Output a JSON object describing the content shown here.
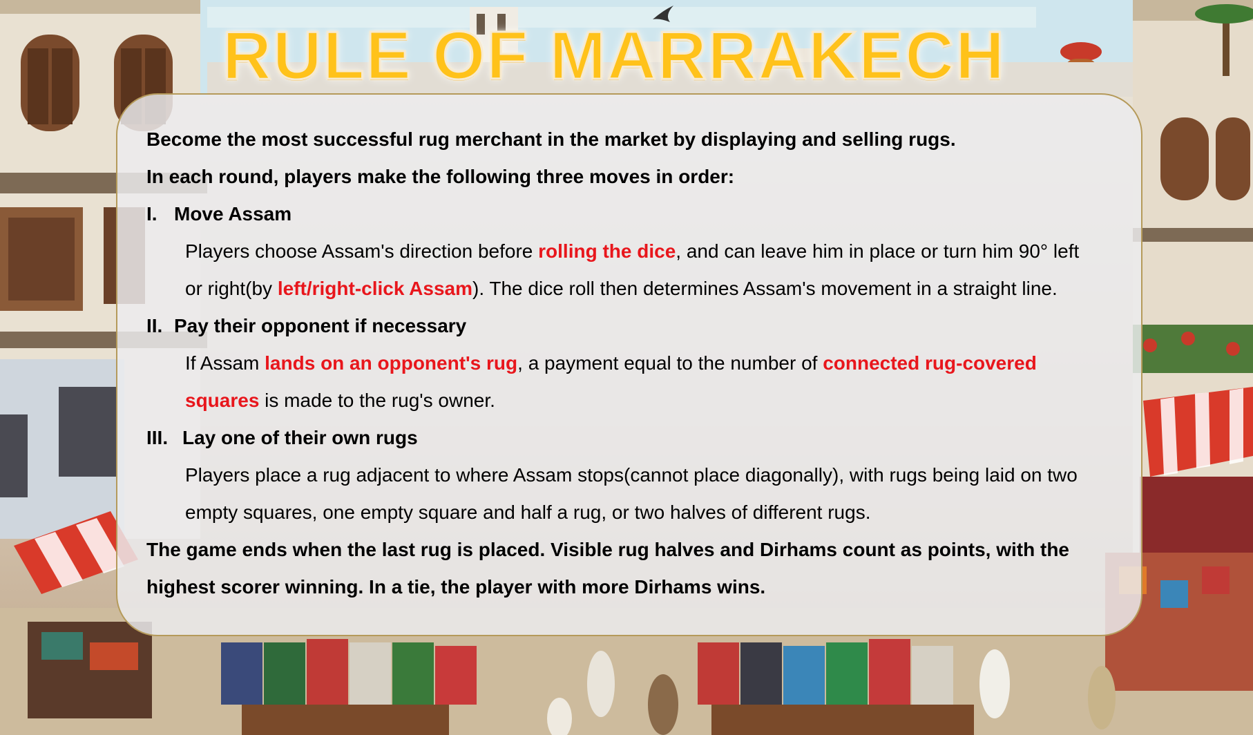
{
  "title": "RULE OF MARRAKECH",
  "intro_1": "Become the most successful rug merchant in the market by displaying and selling rugs.",
  "intro_2": "In each round, players make the following three moves in order:",
  "step1": {
    "num": "I.",
    "heading": "Move Assam",
    "line1_a": "Players choose Assam's direction before ",
    "line1_b": "rolling the dice",
    "line1_c": ", and can leave him in place or turn him 90° left",
    "line2_a": "or right(by ",
    "line2_b": "left/right-click Assam",
    "line2_c": "). The dice roll then determines Assam's movement in a straight line."
  },
  "step2": {
    "num": "II.",
    "heading": "Pay their opponent if necessary",
    "line1_a": "If Assam ",
    "line1_b": "lands on an opponent's rug",
    "line1_c": ", a payment equal to the number of ",
    "line1_d": "connected rug-covered",
    "line2_a": "squares",
    "line2_b": " is made to the rug's owner."
  },
  "step3": {
    "num": "III.",
    "heading": "Lay one of their own rugs",
    "line1": "Players place a rug adjacent to where Assam stops(cannot place diagonally), with rugs being laid on two",
    "line2": "empty squares, one empty square and half a rug, or two halves of different rugs."
  },
  "ending_1": "The game ends when the last rug is placed. Visible rug halves and Dirhams count as points, with the",
  "ending_2": "highest scorer winning. In a tie, the player with more Dirhams wins.",
  "colors": {
    "title": "#ffc21a",
    "highlight": "#e8161c",
    "panel": "#ececee",
    "panel_border": "#b59a5a"
  }
}
